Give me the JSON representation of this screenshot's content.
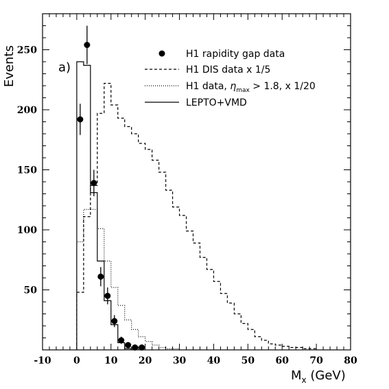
{
  "chart_data": {
    "type": "line",
    "panel_label": "a)",
    "xlabel": "M",
    "xlabel_sub": "x",
    "xlabel_unit": " (GeV)",
    "ylabel": "Events",
    "xlim": [
      -10,
      80
    ],
    "ylim": [
      0,
      280
    ],
    "x_ticks": [
      -10,
      0,
      10,
      20,
      30,
      40,
      50,
      60,
      70,
      80
    ],
    "y_ticks": [
      50,
      100,
      150,
      200,
      250
    ],
    "legend": {
      "placement": "top-right",
      "entries": [
        {
          "key": "data",
          "label": "H1 rapidity gap data"
        },
        {
          "key": "dis",
          "label": "H1 DIS data x 1/5"
        },
        {
          "key": "eta",
          "label_pre": "H1 data, ",
          "label_sym": "η",
          "label_sub": "max",
          "label_post": " > 1.8, x 1/20"
        },
        {
          "key": "lepto",
          "label": "LEPTO+VMD"
        }
      ]
    },
    "series": [
      {
        "key": "data",
        "style": "points-with-errors",
        "points": [
          {
            "x": 1,
            "y": 192,
            "err": 13
          },
          {
            "x": 3,
            "y": 254,
            "err": 16
          },
          {
            "x": 5,
            "y": 139,
            "err": 11
          },
          {
            "x": 7,
            "y": 61,
            "err": 8
          },
          {
            "x": 9,
            "y": 45,
            "err": 7
          },
          {
            "x": 11,
            "y": 24,
            "err": 5
          },
          {
            "x": 13,
            "y": 8,
            "err": 3
          },
          {
            "x": 15,
            "y": 4,
            "err": 2
          },
          {
            "x": 17,
            "y": 2,
            "err": 1
          },
          {
            "x": 19,
            "y": 2,
            "err": 1
          }
        ]
      },
      {
        "key": "dis",
        "style": "dashed-histogram",
        "bin_edges": [
          0,
          2,
          4,
          6,
          8,
          10,
          12,
          14,
          16,
          18,
          20,
          22,
          24,
          26,
          28,
          30,
          32,
          34,
          36,
          38,
          40,
          42,
          44,
          46,
          48,
          50,
          52,
          54,
          56,
          58,
          60,
          62,
          64,
          66,
          68,
          70
        ],
        "values": [
          48,
          111,
          137,
          197,
          222,
          204,
          193,
          186,
          180,
          172,
          167,
          158,
          148,
          133,
          119,
          112,
          99,
          89,
          77,
          67,
          57,
          47,
          39,
          30,
          22,
          17,
          11,
          8,
          5,
          4,
          3,
          2,
          2,
          1,
          1
        ]
      },
      {
        "key": "eta",
        "style": "dotted-histogram",
        "bin_edges": [
          0,
          2,
          4,
          6,
          8,
          10,
          12,
          14,
          16,
          18,
          20,
          22,
          24,
          26,
          28,
          30
        ],
        "values": [
          90,
          117,
          117,
          101,
          74,
          52,
          37,
          25,
          17,
          11,
          7,
          4,
          2,
          1,
          1
        ]
      },
      {
        "key": "lepto",
        "style": "solid-histogram",
        "bin_edges": [
          0,
          2,
          4,
          6,
          8,
          10,
          12,
          14,
          16
        ],
        "values": [
          240,
          237,
          131,
          74,
          41,
          21,
          6,
          1
        ]
      }
    ]
  }
}
